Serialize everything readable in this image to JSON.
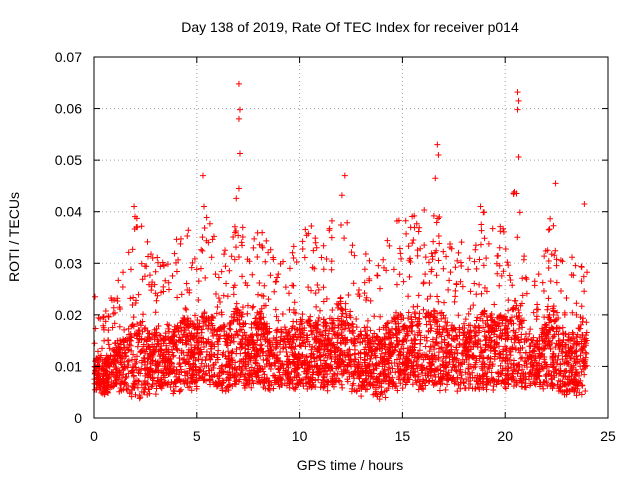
{
  "chart_data": {
    "type": "scatter",
    "title": "Day 138 of 2019, Rate Of TEC Index for receiver p014",
    "xlabel": "GPS time / hours",
    "ylabel": "ROTI / TECUs",
    "xlim": [
      0,
      25
    ],
    "ylim": [
      0,
      0.07
    ],
    "xticks": [
      "0",
      "5",
      "10",
      "15",
      "20",
      "25"
    ],
    "yticks": [
      "0",
      "0.01",
      "0.02",
      "0.03",
      "0.04",
      "0.05",
      "0.06",
      "0.07"
    ],
    "grid": true,
    "marker": "+",
    "series": [
      {
        "name": "p014",
        "color": "#ff0000",
        "points_description_free": true,
        "envelope": {
          "x": [
            0.0,
            0.5,
            1.0,
            1.5,
            2.0,
            2.5,
            3.0,
            3.5,
            4.0,
            4.5,
            5.0,
            5.5,
            6.0,
            6.5,
            7.0,
            7.5,
            8.0,
            8.5,
            9.0,
            9.5,
            10.0,
            10.5,
            11.0,
            11.5,
            12.0,
            12.5,
            13.0,
            13.5,
            14.0,
            14.5,
            15.0,
            15.5,
            16.0,
            16.5,
            17.0,
            17.5,
            18.0,
            18.5,
            19.0,
            19.5,
            20.0,
            20.5,
            21.0,
            21.5,
            22.0,
            22.5,
            23.0,
            23.5,
            24.0
          ],
          "upper": [
            0.024,
            0.02,
            0.025,
            0.03,
            0.041,
            0.035,
            0.032,
            0.03,
            0.036,
            0.038,
            0.035,
            0.04,
            0.034,
            0.033,
            0.045,
            0.03,
            0.039,
            0.033,
            0.033,
            0.032,
            0.035,
            0.038,
            0.035,
            0.039,
            0.047,
            0.036,
            0.031,
            0.033,
            0.033,
            0.039,
            0.039,
            0.04,
            0.042,
            0.04,
            0.042,
            0.033,
            0.035,
            0.034,
            0.041,
            0.036,
            0.04,
            0.045,
            0.034,
            0.026,
            0.035,
            0.045,
            0.03,
            0.033,
            0.041
          ],
          "lower": [
            0.005,
            0.004,
            0.006,
            0.004,
            0.003,
            0.004,
            0.004,
            0.005,
            0.004,
            0.005,
            0.005,
            0.006,
            0.005,
            0.005,
            0.005,
            0.005,
            0.006,
            0.005,
            0.005,
            0.005,
            0.005,
            0.005,
            0.005,
            0.005,
            0.005,
            0.005,
            0.004,
            0.004,
            0.003,
            0.005,
            0.004,
            0.005,
            0.005,
            0.005,
            0.005,
            0.005,
            0.005,
            0.005,
            0.005,
            0.005,
            0.005,
            0.005,
            0.005,
            0.006,
            0.005,
            0.004,
            0.004,
            0.004,
            0.005
          ]
        },
        "peaks": [
          {
            "x": 0.05,
            "y": 0.0235
          },
          {
            "x": 1.95,
            "y": 0.041
          },
          {
            "x": 5.3,
            "y": 0.047
          },
          {
            "x": 5.35,
            "y": 0.041
          },
          {
            "x": 7.05,
            "y": 0.0648
          },
          {
            "x": 7.1,
            "y": 0.0598
          },
          {
            "x": 7.05,
            "y": 0.058
          },
          {
            "x": 7.1,
            "y": 0.0513
          },
          {
            "x": 7.05,
            "y": 0.0445
          },
          {
            "x": 12.2,
            "y": 0.047
          },
          {
            "x": 16.7,
            "y": 0.053
          },
          {
            "x": 16.75,
            "y": 0.051
          },
          {
            "x": 16.6,
            "y": 0.0465
          },
          {
            "x": 18.8,
            "y": 0.041
          },
          {
            "x": 20.6,
            "y": 0.0632
          },
          {
            "x": 20.65,
            "y": 0.0615
          },
          {
            "x": 20.6,
            "y": 0.0598
          },
          {
            "x": 20.65,
            "y": 0.0506
          },
          {
            "x": 22.45,
            "y": 0.0455
          },
          {
            "x": 23.85,
            "y": 0.0415
          }
        ]
      }
    ]
  }
}
